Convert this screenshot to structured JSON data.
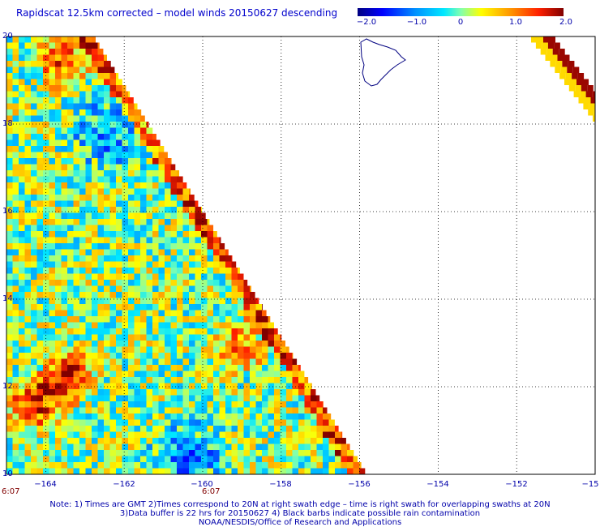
{
  "title": "Rapidscat 12.5km corrected – model winds 20150627 descending",
  "colorbar": {
    "range": [
      -2.0,
      2.0
    ],
    "tick_labels": [
      "−2.0",
      "−1.0",
      "0",
      "1.0",
      "2.0"
    ],
    "colors": [
      "#000080",
      "#0000ff",
      "#0080ff",
      "#00e0ff",
      "#80ffa0",
      "#ffff00",
      "#ffa000",
      "#ff3000",
      "#c00000",
      "#800000"
    ]
  },
  "axes": {
    "lon_labels": [
      "−164",
      "−162",
      "−160",
      "−158",
      "−156",
      "−154",
      "−152",
      "−15"
    ],
    "lat_labels": [
      "20",
      "18",
      "16",
      "14",
      "12",
      "10"
    ],
    "lon_range": [
      -165,
      -150
    ],
    "lat_range": [
      10,
      20
    ]
  },
  "time_labels": [
    "6:07",
    "6:07"
  ],
  "notes": [
    "Note: 1) Times are GMT 2)Times correspond to 20N at right swath edge – time is right swath for overlapping swaths at 20N",
    "3)Data buffer is 22 hrs for 20150627 4) Black barbs indicate possible rain contamination",
    "NOAA/NESDIS/Office of Research and Applications"
  ]
}
